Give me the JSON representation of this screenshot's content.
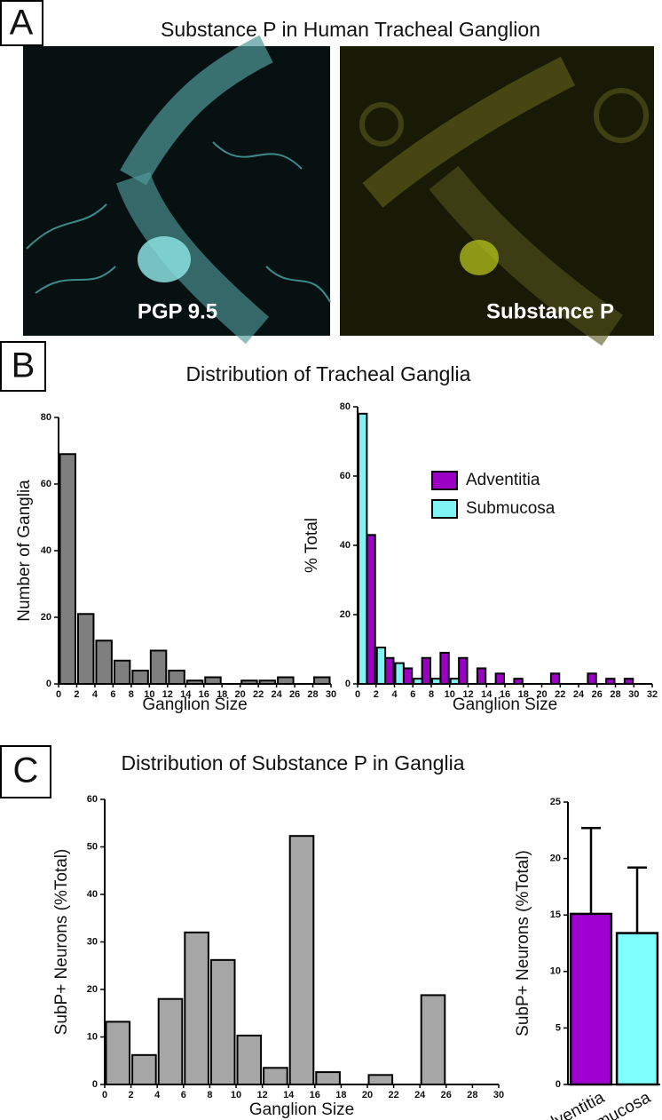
{
  "panels": {
    "a": {
      "label": "A",
      "title": "Substance P in Human Tracheal Ganglion",
      "images": [
        "PGP 9.5",
        "Substance P"
      ]
    },
    "b": {
      "label": "B",
      "title": "Distribution of Tracheal Ganglia"
    },
    "c": {
      "label": "C",
      "title": "Distribution of Substance P in Ganglia"
    }
  },
  "chart_data": [
    {
      "type": "histogram",
      "y_label": "Number of Ganglia",
      "x_label": "Ganglion Size",
      "bins": [
        0,
        2,
        4,
        6,
        8,
        10,
        12,
        14,
        16,
        18,
        20,
        22,
        24,
        26,
        28,
        30
      ],
      "values": [
        69,
        21,
        13,
        7,
        4,
        10,
        4,
        1,
        2,
        0,
        1,
        1,
        2,
        0,
        2
      ],
      "color": "#7f7f7f",
      "xlim": [
        0,
        30
      ],
      "xticks": [
        0,
        2,
        4,
        6,
        8,
        10,
        12,
        14,
        16,
        18,
        20,
        22,
        24,
        26,
        28,
        30
      ],
      "ylim": [
        0,
        80
      ],
      "yticks": [
        0,
        20,
        40,
        60,
        80
      ]
    },
    {
      "type": "histogram",
      "y_label": "% Total",
      "x_label": "Ganglion Size",
      "bins": [
        0,
        2,
        4,
        6,
        8,
        10,
        12,
        14,
        16,
        18,
        20,
        22,
        24,
        26,
        28,
        30
      ],
      "series": [
        {
          "name": "Adventitia",
          "color": "#9b00c4",
          "values": [
            43,
            7.5,
            4.5,
            7.5,
            9,
            7.5,
            4.5,
            3,
            1.5,
            0,
            3,
            0,
            3,
            1.5,
            1.5
          ]
        },
        {
          "name": "Submucosa",
          "color": "#80f4f4",
          "values": [
            78,
            10.5,
            6,
            1.5,
            1.5,
            1.5,
            0,
            0,
            0,
            0,
            0,
            0,
            0,
            0,
            0
          ]
        }
      ],
      "xlim": [
        0,
        32
      ],
      "xticks": [
        0,
        2,
        4,
        6,
        8,
        10,
        12,
        14,
        16,
        18,
        20,
        22,
        24,
        26,
        28,
        30,
        32
      ],
      "ylim": [
        0,
        80
      ],
      "yticks": [
        0,
        20,
        40,
        60,
        80
      ],
      "legend": "upper right"
    },
    {
      "type": "histogram",
      "y_label": "SubP+ Neurons (%Total)",
      "x_label": "Ganglion Size",
      "bins": [
        0,
        2,
        4,
        6,
        8,
        10,
        12,
        14,
        16,
        18,
        20,
        22,
        24,
        26,
        28,
        30
      ],
      "values": [
        13.2,
        6.2,
        18,
        32,
        26.2,
        10.3,
        3.5,
        52.3,
        2.6,
        0,
        2,
        0,
        18.8,
        0,
        0
      ],
      "color": "#a6a6a6",
      "xlim": [
        0,
        30
      ],
      "xticks": [
        0,
        2,
        4,
        6,
        8,
        10,
        12,
        14,
        16,
        18,
        20,
        22,
        24,
        26,
        28,
        30
      ],
      "ylim": [
        0,
        60
      ],
      "yticks": [
        0,
        10,
        20,
        30,
        40,
        50,
        60
      ]
    },
    {
      "type": "bar",
      "y_label": "SubP+ Neurons (%Total)",
      "categories": [
        "Adventitia",
        "Submucosa"
      ],
      "values": [
        15.1,
        13.4
      ],
      "errors": [
        7.6,
        5.8
      ],
      "colors": [
        "#a100d2",
        "#80ffff"
      ],
      "ylim": [
        0,
        25
      ],
      "yticks": [
        0,
        5,
        10,
        15,
        20,
        25
      ]
    }
  ]
}
